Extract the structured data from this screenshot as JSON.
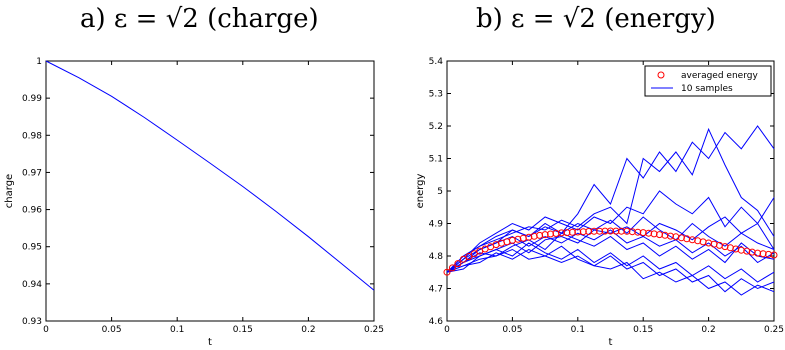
{
  "chart_data": [
    {
      "type": "line",
      "panel_label": "a)",
      "title_prefix": "a) ε = √2 (charge)",
      "title": "a) ε = √2 (charge)",
      "xlabel": "t",
      "ylabel": "charge",
      "xlim": [
        0,
        0.25
      ],
      "ylim": [
        0.93,
        1.0
      ],
      "xticks": [
        "0",
        "0.05",
        "0.1",
        "0.15",
        "0.2",
        "0.25"
      ],
      "yticks": [
        "0.93",
        "0.94",
        "0.95",
        "0.96",
        "0.97",
        "0.98",
        "0.99",
        "1"
      ],
      "series": [
        {
          "color": "#0000ff",
          "x": [
            0,
            0.025,
            0.05,
            0.075,
            0.1,
            0.125,
            0.15,
            0.175,
            0.2,
            0.225,
            0.25
          ],
          "values": [
            1.0,
            0.9955,
            0.9905,
            0.9848,
            0.9787,
            0.9725,
            0.9662,
            0.9596,
            0.9527,
            0.9455,
            0.9383
          ]
        }
      ]
    },
    {
      "type": "line",
      "panel_label": "b)",
      "title": "b) ε = √2 (energy)",
      "xlabel": "t",
      "ylabel": "energy",
      "xlim": [
        0,
        0.25
      ],
      "ylim": [
        4.6,
        5.4
      ],
      "xticks": [
        "0",
        "0.05",
        "0.1",
        "0.15",
        "0.2",
        "0.25"
      ],
      "yticks": [
        "4.6",
        "4.7",
        "4.8",
        "4.9",
        "5",
        "5.1",
        "5.2",
        "5.3",
        "5.4"
      ],
      "legend": {
        "placement": "top-right",
        "entries": [
          "averaged energy",
          "10 samples"
        ]
      },
      "x": [
        0,
        0.0125,
        0.025,
        0.0375,
        0.05,
        0.0625,
        0.075,
        0.0875,
        0.1,
        0.1125,
        0.125,
        0.1375,
        0.15,
        0.1625,
        0.175,
        0.1875,
        0.2,
        0.2125,
        0.225,
        0.2375,
        0.25
      ],
      "series": [
        {
          "name": "averaged energy",
          "marker": "circle",
          "color": "#ff0000",
          "values": [
            4.75,
            4.79,
            4.815,
            4.835,
            4.848,
            4.858,
            4.866,
            4.871,
            4.874,
            4.876,
            4.877,
            4.876,
            4.872,
            4.866,
            4.859,
            4.85,
            4.84,
            4.829,
            4.818,
            4.809,
            4.803
          ]
        },
        {
          "name": "10 samples",
          "color": "#0000ff",
          "values": [
            4.75,
            4.78,
            4.82,
            4.84,
            4.88,
            4.86,
            4.9,
            4.87,
            4.93,
            5.02,
            4.96,
            5.1,
            5.04,
            5.12,
            5.06,
            5.15,
            5.1,
            5.18,
            5.13,
            5.2,
            5.13
          ]
        },
        {
          "color": "#0000ff",
          "values": [
            4.75,
            4.8,
            4.83,
            4.85,
            4.87,
            4.89,
            4.88,
            4.91,
            4.89,
            4.93,
            4.95,
            4.9,
            5.1,
            5.06,
            5.12,
            5.05,
            5.19,
            5.08,
            4.98,
            4.94,
            4.86
          ]
        },
        {
          "color": "#0000ff",
          "values": [
            4.75,
            4.79,
            4.84,
            4.87,
            4.9,
            4.88,
            4.92,
            4.9,
            4.88,
            4.92,
            4.9,
            4.95,
            4.93,
            5.0,
            4.96,
            4.93,
            4.98,
            4.89,
            4.95,
            4.9,
            4.98
          ]
        },
        {
          "color": "#0000ff",
          "values": [
            4.75,
            4.78,
            4.8,
            4.82,
            4.84,
            4.81,
            4.85,
            4.86,
            4.84,
            4.88,
            4.87,
            4.89,
            4.86,
            4.9,
            4.88,
            4.85,
            4.89,
            4.92,
            4.87,
            4.9,
            4.82
          ]
        },
        {
          "color": "#0000ff",
          "values": [
            4.75,
            4.77,
            4.79,
            4.8,
            4.83,
            4.85,
            4.82,
            4.87,
            4.85,
            4.83,
            4.86,
            4.82,
            4.84,
            4.8,
            4.83,
            4.79,
            4.82,
            4.78,
            4.84,
            4.8,
            4.79
          ]
        },
        {
          "color": "#0000ff",
          "values": [
            4.75,
            4.76,
            4.8,
            4.82,
            4.8,
            4.84,
            4.81,
            4.79,
            4.82,
            4.78,
            4.81,
            4.77,
            4.8,
            4.76,
            4.78,
            4.74,
            4.77,
            4.73,
            4.76,
            4.72,
            4.75
          ]
        },
        {
          "color": "#0000ff",
          "values": [
            4.75,
            4.78,
            4.81,
            4.8,
            4.82,
            4.79,
            4.8,
            4.83,
            4.79,
            4.77,
            4.8,
            4.76,
            4.78,
            4.74,
            4.76,
            4.72,
            4.74,
            4.69,
            4.73,
            4.7,
            4.72
          ]
        },
        {
          "color": "#0000ff",
          "values": [
            4.75,
            4.77,
            4.78,
            4.81,
            4.79,
            4.82,
            4.8,
            4.78,
            4.8,
            4.77,
            4.76,
            4.78,
            4.73,
            4.75,
            4.72,
            4.74,
            4.7,
            4.72,
            4.68,
            4.71,
            4.69
          ]
        },
        {
          "color": "#0000ff",
          "values": [
            4.75,
            4.79,
            4.82,
            4.84,
            4.86,
            4.83,
            4.86,
            4.84,
            4.87,
            4.85,
            4.88,
            4.84,
            4.86,
            4.83,
            4.85,
            4.81,
            4.84,
            4.8,
            4.83,
            4.78,
            4.81
          ]
        },
        {
          "color": "#0000ff",
          "values": [
            4.75,
            4.8,
            4.83,
            4.86,
            4.88,
            4.86,
            4.89,
            4.87,
            4.9,
            4.88,
            4.91,
            4.87,
            4.92,
            4.88,
            4.85,
            4.9,
            4.86,
            4.83,
            4.87,
            4.84,
            4.82
          ]
        }
      ]
    }
  ]
}
